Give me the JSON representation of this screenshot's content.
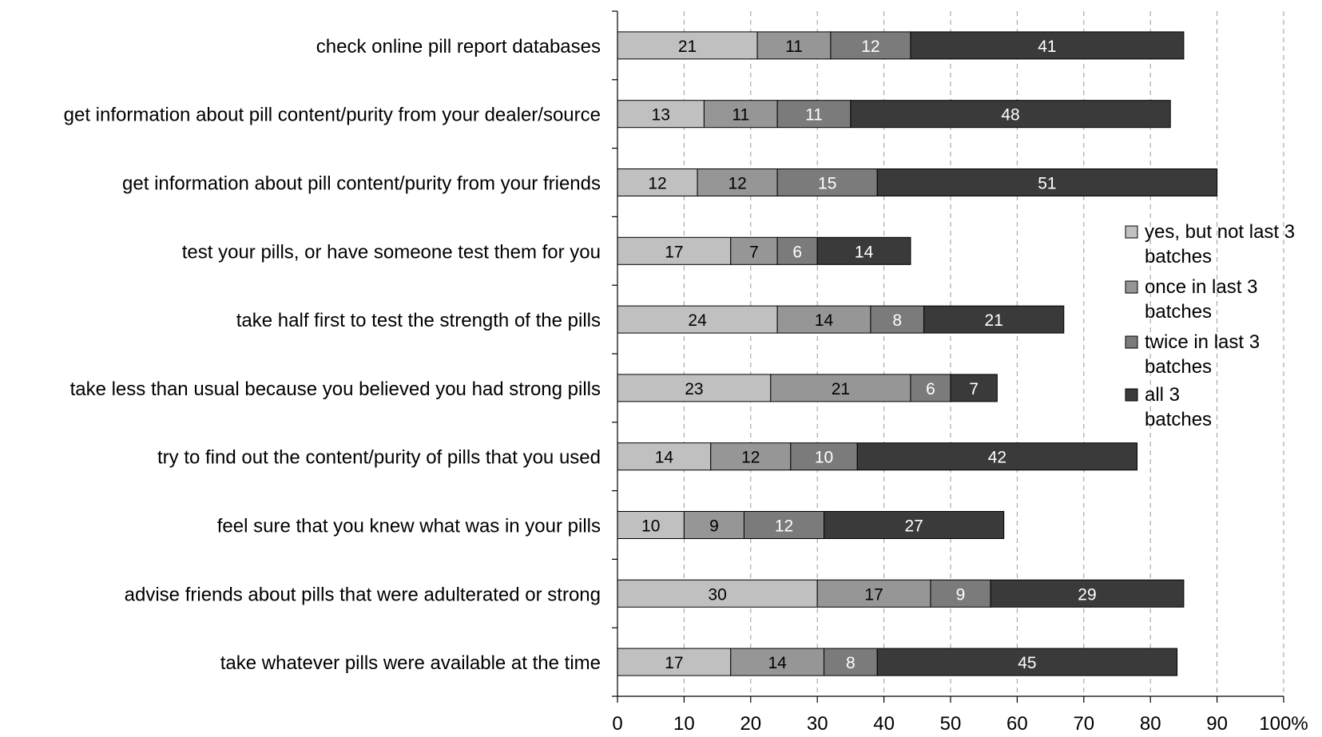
{
  "chart_data": {
    "type": "bar",
    "orientation": "horizontal",
    "stacked": true,
    "categories": [
      "check online pill report databases",
      "get information about pill content/purity from your dealer/source",
      "get information about pill content/purity from your friends",
      "test your pills, or have someone test them for you",
      "take half first to test the strength of the pills",
      "take less than usual because you believed you had strong pills",
      "try to find out the content/purity of pills that you used",
      "feel sure that you knew what was in your pills",
      "advise friends about pills that were adulterated or strong",
      "take whatever pills were available at the time"
    ],
    "series": [
      {
        "name": "yes, but not last 3 batches",
        "color": "#c0c0c0",
        "label_color": "#000000",
        "values": [
          21,
          13,
          12,
          17,
          24,
          23,
          14,
          10,
          30,
          17
        ]
      },
      {
        "name": "once in last 3 batches",
        "color": "#969696",
        "label_color": "#000000",
        "values": [
          11,
          11,
          12,
          7,
          14,
          21,
          12,
          9,
          17,
          14
        ]
      },
      {
        "name": "twice in last 3 batches",
        "color": "#7b7b7b",
        "label_color": "#ffffff",
        "values": [
          12,
          11,
          15,
          6,
          8,
          6,
          10,
          12,
          9,
          8
        ]
      },
      {
        "name": "all 3 batches",
        "color": "#3a3a3a",
        "label_color": "#ffffff",
        "values": [
          41,
          48,
          51,
          14,
          21,
          7,
          42,
          27,
          29,
          45
        ]
      }
    ],
    "x_ticks": [
      "0",
      "10",
      "20",
      "30",
      "40",
      "50",
      "60",
      "70",
      "80",
      "90",
      "100%"
    ],
    "xlim": [
      0,
      100
    ],
    "grid": "vertical dashed",
    "legend_position": "right"
  }
}
